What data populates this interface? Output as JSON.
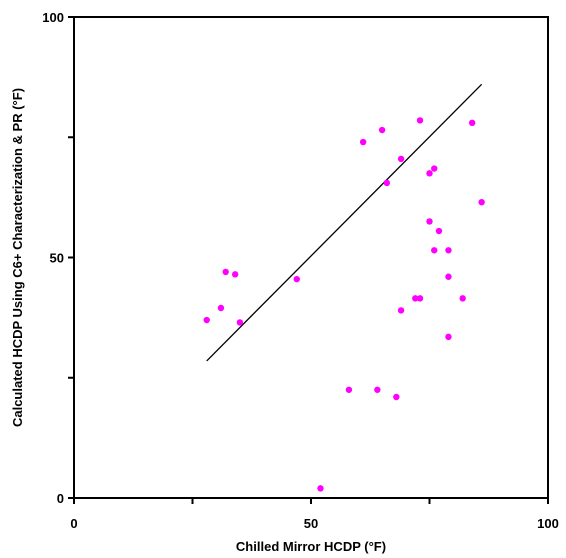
{
  "chart_data": {
    "type": "scatter",
    "title": "",
    "xlabel": "Chilled Mirror HCDP (°F)",
    "ylabel": "Calculated HCDP Using C6+ Characterization & PR (°F)",
    "xlim": [
      0,
      100
    ],
    "ylim": [
      0,
      100
    ],
    "xticks": [
      0,
      25,
      50,
      75,
      100
    ],
    "yticks": [
      0,
      25,
      50,
      75,
      100
    ],
    "xtick_labels": [
      "0",
      "",
      "50",
      "",
      "100"
    ],
    "ytick_labels": [
      "0",
      "",
      "50",
      "",
      "100"
    ],
    "grid": false,
    "legend": "none",
    "series": [
      {
        "color": "#ff00ff",
        "points": [
          [
            28,
            37
          ],
          [
            31,
            39.5
          ],
          [
            32,
            47
          ],
          [
            34,
            46.5
          ],
          [
            35,
            36.5
          ],
          [
            47,
            45.5
          ],
          [
            52,
            2
          ],
          [
            58,
            22.5
          ],
          [
            61,
            74
          ],
          [
            64,
            22.5
          ],
          [
            65,
            76.5
          ],
          [
            66,
            65.5
          ],
          [
            68,
            21
          ],
          [
            69,
            39
          ],
          [
            69,
            70.5
          ],
          [
            72,
            41.5
          ],
          [
            73,
            41.5
          ],
          [
            73,
            78.5
          ],
          [
            75,
            57.5
          ],
          [
            75,
            67.5
          ],
          [
            76,
            68.5
          ],
          [
            76,
            51.5
          ],
          [
            77,
            55.5
          ],
          [
            79,
            51.5
          ],
          [
            79,
            46
          ],
          [
            79,
            33.5
          ],
          [
            82,
            41.5
          ],
          [
            84,
            78
          ],
          [
            86,
            61.5
          ]
        ]
      }
    ],
    "trendline": {
      "color": "#000000",
      "points": [
        [
          28,
          28.5
        ],
        [
          86,
          86
        ]
      ]
    }
  }
}
